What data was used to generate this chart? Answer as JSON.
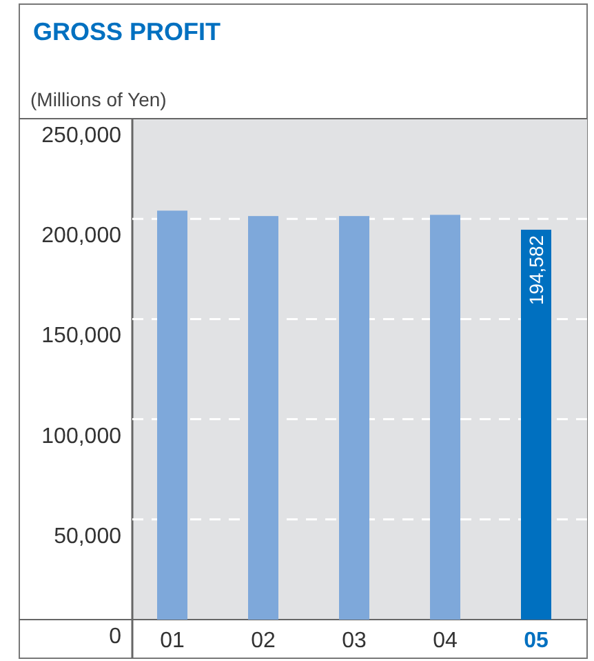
{
  "chart_data": {
    "type": "bar",
    "title": "GROSS PROFIT",
    "ylabel": "(Millions of Yen)",
    "categories": [
      "01",
      "02",
      "03",
      "04",
      "05"
    ],
    "values": [
      204100,
      201400,
      201400,
      202000,
      194582
    ],
    "colors": [
      "#7ea8da",
      "#7ea8da",
      "#7ea8da",
      "#7ea8da",
      "#0070c0"
    ],
    "value_labels": [
      null,
      null,
      null,
      null,
      "194,582"
    ],
    "ylim": [
      0,
      250000
    ],
    "yticks": [
      0,
      {
        "value": 50000,
        "label": "50,000"
      },
      {
        "value": 100000,
        "label": "100,000"
      },
      {
        "value": 150000,
        "label": "150,000"
      },
      {
        "value": 200000,
        "label": "200,000"
      },
      {
        "value": 250000,
        "label": "250,000"
      }
    ],
    "grid": "y"
  }
}
